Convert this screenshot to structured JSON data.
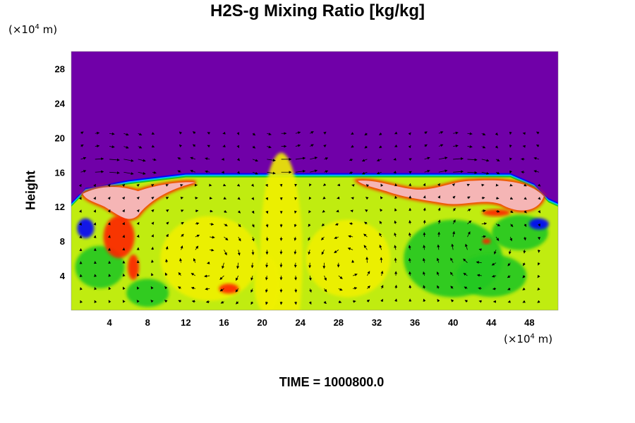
{
  "chart_data": {
    "type": "heatmap",
    "title": "H2S-g Mixing Ratio [kg/kg]",
    "ylabel": "Height",
    "xunit": {
      "prefix": "(×10",
      "exp": "4",
      "suffix": " m)"
    },
    "yunit": {
      "prefix": "(×10",
      "exp": "4",
      "suffix": " m)"
    },
    "xlim": [
      0,
      51
    ],
    "ylim": [
      0,
      30
    ],
    "xticks": [
      4,
      8,
      12,
      16,
      20,
      24,
      28,
      32,
      36,
      40,
      44,
      48
    ],
    "yticks": [
      4,
      8,
      12,
      16,
      20,
      24,
      28
    ],
    "time_label": "TIME = 1000800.0",
    "colors": {
      "background_upper": "#7000a8",
      "low": "#c0ec10",
      "mid": "#f0f000",
      "green": "#20c820",
      "cyan": "#00c0f0",
      "blue": "#0000ff",
      "red": "#ff2000",
      "pink": "#f5b5b5"
    },
    "field": {
      "mixed_layer_top": 15.4,
      "vortices": [
        {
          "x": 14.5,
          "y": 6.0,
          "rotation": "clockwise"
        },
        {
          "x": 29.0,
          "y": 5.5,
          "rotation": "counterclockwise"
        },
        {
          "x": 43.0,
          "y": 7.5,
          "rotation": "clockwise"
        }
      ]
    },
    "grid": false
  }
}
